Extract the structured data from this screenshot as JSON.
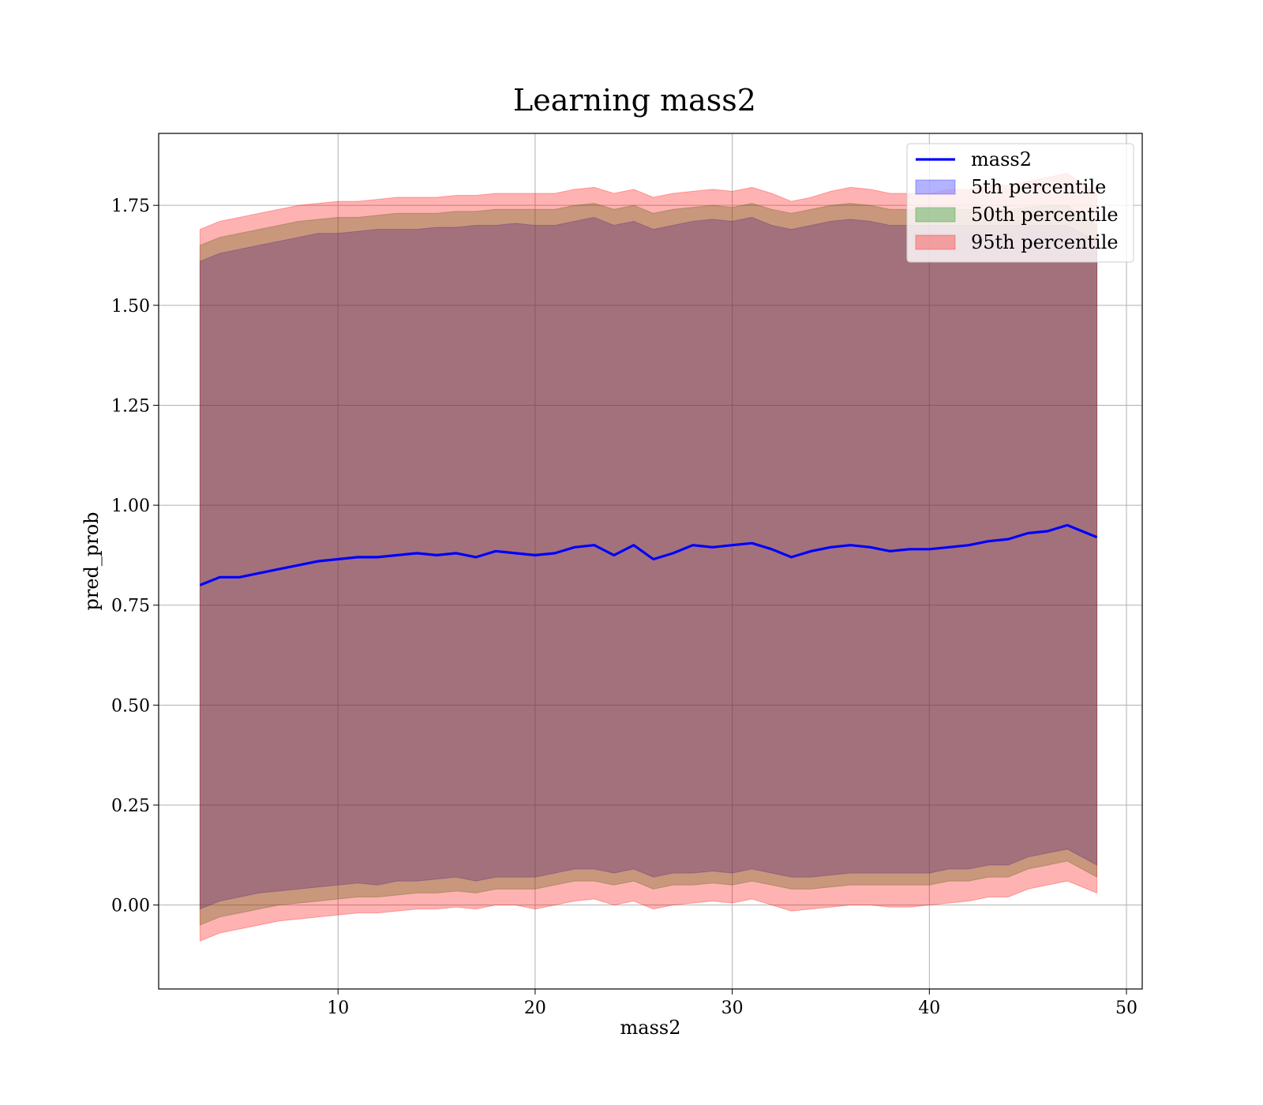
{
  "chart_data": {
    "type": "area",
    "title": "Learning mass2",
    "xlabel": "mass2",
    "ylabel": "pred_prob",
    "xlim": [
      0.9,
      50.8
    ],
    "ylim": [
      -0.21,
      1.93
    ],
    "xticks": [
      10,
      20,
      30,
      40,
      50
    ],
    "yticks": [
      0.0,
      0.25,
      0.5,
      0.75,
      1.0,
      1.25,
      1.5,
      1.75
    ],
    "grid": true,
    "legend_position": "top-right",
    "x": [
      3,
      4,
      5,
      6,
      7,
      8,
      9,
      10,
      11,
      12,
      13,
      14,
      15,
      16,
      17,
      18,
      19,
      20,
      21,
      22,
      23,
      24,
      25,
      26,
      27,
      28,
      29,
      30,
      31,
      32,
      33,
      34,
      35,
      36,
      37,
      38,
      39,
      40,
      41,
      42,
      43,
      44,
      45,
      46,
      47,
      48.5
    ],
    "line": {
      "name": "mass2",
      "color": "#0000ff",
      "values": [
        0.8,
        0.82,
        0.82,
        0.83,
        0.84,
        0.85,
        0.86,
        0.865,
        0.87,
        0.87,
        0.875,
        0.88,
        0.875,
        0.88,
        0.87,
        0.885,
        0.88,
        0.875,
        0.88,
        0.895,
        0.9,
        0.875,
        0.9,
        0.865,
        0.88,
        0.9,
        0.895,
        0.9,
        0.905,
        0.89,
        0.87,
        0.885,
        0.895,
        0.9,
        0.895,
        0.885,
        0.89,
        0.89,
        0.895,
        0.9,
        0.91,
        0.915,
        0.93,
        0.935,
        0.95,
        0.92
      ]
    },
    "bands": [
      {
        "name": "5th percentile",
        "color": "#0000ff",
        "lower": [
          -0.01,
          0.01,
          0.02,
          0.03,
          0.035,
          0.04,
          0.045,
          0.05,
          0.055,
          0.05,
          0.06,
          0.06,
          0.065,
          0.07,
          0.06,
          0.07,
          0.07,
          0.07,
          0.08,
          0.09,
          0.09,
          0.08,
          0.09,
          0.07,
          0.08,
          0.08,
          0.085,
          0.08,
          0.09,
          0.08,
          0.07,
          0.07,
          0.075,
          0.08,
          0.08,
          0.08,
          0.08,
          0.08,
          0.09,
          0.09,
          0.1,
          0.1,
          0.12,
          0.13,
          0.14,
          0.1
        ],
        "upper": [
          1.61,
          1.63,
          1.64,
          1.65,
          1.66,
          1.67,
          1.68,
          1.68,
          1.685,
          1.69,
          1.69,
          1.69,
          1.695,
          1.695,
          1.7,
          1.7,
          1.705,
          1.7,
          1.7,
          1.71,
          1.72,
          1.7,
          1.71,
          1.69,
          1.7,
          1.71,
          1.715,
          1.71,
          1.72,
          1.7,
          1.69,
          1.7,
          1.71,
          1.715,
          1.71,
          1.7,
          1.7,
          1.7,
          1.7,
          1.7,
          1.7,
          1.7,
          1.7,
          1.7,
          1.7,
          1.66
        ]
      },
      {
        "name": "50th percentile",
        "color": "#008000",
        "lower": [
          -0.05,
          -0.03,
          -0.02,
          -0.01,
          0.0,
          0.005,
          0.01,
          0.015,
          0.02,
          0.02,
          0.025,
          0.03,
          0.03,
          0.035,
          0.03,
          0.04,
          0.04,
          0.04,
          0.05,
          0.06,
          0.06,
          0.05,
          0.06,
          0.04,
          0.05,
          0.05,
          0.055,
          0.05,
          0.06,
          0.05,
          0.04,
          0.04,
          0.045,
          0.05,
          0.05,
          0.05,
          0.05,
          0.05,
          0.06,
          0.06,
          0.07,
          0.07,
          0.09,
          0.1,
          0.11,
          0.07
        ],
        "upper": [
          1.65,
          1.67,
          1.68,
          1.69,
          1.7,
          1.71,
          1.715,
          1.72,
          1.72,
          1.725,
          1.73,
          1.73,
          1.73,
          1.735,
          1.735,
          1.74,
          1.74,
          1.74,
          1.74,
          1.75,
          1.755,
          1.74,
          1.75,
          1.73,
          1.74,
          1.745,
          1.75,
          1.745,
          1.755,
          1.74,
          1.73,
          1.74,
          1.75,
          1.755,
          1.75,
          1.74,
          1.74,
          1.74,
          1.74,
          1.74,
          1.74,
          1.74,
          1.745,
          1.75,
          1.75,
          1.7
        ]
      },
      {
        "name": "95th percentile",
        "color": "#ff0000",
        "lower": [
          -0.09,
          -0.07,
          -0.06,
          -0.05,
          -0.04,
          -0.035,
          -0.03,
          -0.025,
          -0.02,
          -0.02,
          -0.015,
          -0.01,
          -0.01,
          -0.005,
          -0.01,
          0.0,
          0.0,
          -0.01,
          0.0,
          0.01,
          0.015,
          0.0,
          0.01,
          -0.01,
          0.0,
          0.005,
          0.01,
          0.005,
          0.015,
          0.0,
          -0.015,
          -0.01,
          -0.005,
          0.0,
          0.0,
          -0.005,
          -0.005,
          0.0,
          0.005,
          0.01,
          0.02,
          0.02,
          0.04,
          0.05,
          0.06,
          0.03
        ],
        "upper": [
          1.69,
          1.71,
          1.72,
          1.73,
          1.74,
          1.75,
          1.755,
          1.76,
          1.76,
          1.765,
          1.77,
          1.77,
          1.77,
          1.775,
          1.775,
          1.78,
          1.78,
          1.78,
          1.78,
          1.79,
          1.795,
          1.78,
          1.79,
          1.77,
          1.78,
          1.785,
          1.79,
          1.785,
          1.795,
          1.78,
          1.76,
          1.77,
          1.785,
          1.795,
          1.79,
          1.78,
          1.78,
          1.78,
          1.79,
          1.79,
          1.8,
          1.8,
          1.81,
          1.82,
          1.83,
          1.78
        ]
      }
    ]
  }
}
